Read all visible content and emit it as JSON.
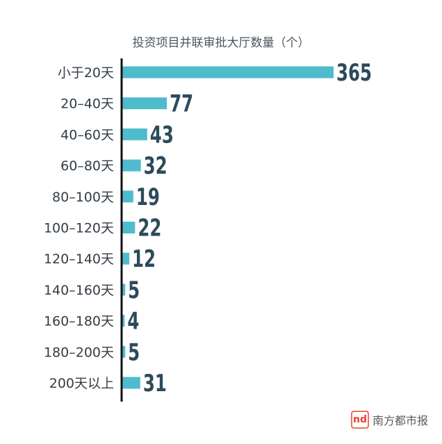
{
  "chart_data": {
    "type": "bar",
    "orientation": "horizontal",
    "title": "投资项目并联审批大厅数量（个）",
    "categories": [
      "小于20天",
      "20–40天",
      "40–60天",
      "60–80天",
      "80–100天",
      "100–120天",
      "120–140天",
      "140–160天",
      "160–180天",
      "180–200天",
      "200天以上"
    ],
    "values": [
      365,
      77,
      43,
      32,
      19,
      22,
      12,
      5,
      4,
      5,
      31
    ],
    "xlim": [
      0,
      365
    ],
    "grid": false,
    "legend": "none",
    "bar_color": "#4fbccd",
    "value_label_color": "#2d4a5a"
  },
  "watermark": {
    "logo_mark": "nd",
    "text": "南方都市报"
  }
}
